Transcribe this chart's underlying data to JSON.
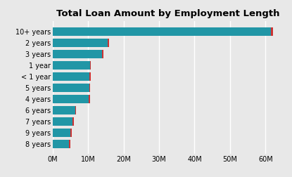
{
  "title": "Total Loan Amount by Employment Length",
  "categories": [
    "10+ years",
    "2 years",
    "3 years",
    "1 year",
    "< 1 year",
    "5 years",
    "4 years",
    "6 years",
    "7 years",
    "9 years",
    "8 years"
  ],
  "values": [
    61500000,
    15500000,
    14000000,
    10500000,
    10400000,
    10300000,
    10200000,
    6400000,
    5700000,
    5100000,
    4700000
  ],
  "red_values": [
    62200000,
    15900000,
    14400000,
    10700000,
    10700000,
    10600000,
    10500000,
    6700000,
    6000000,
    5400000,
    5000000
  ],
  "bar_color": "#2196A6",
  "red_color": "#cc3333",
  "background_color": "#e8e8e8",
  "plot_bg_color": "#e8e8e8",
  "grid_color": "#ffffff",
  "title_fontsize": 9.5,
  "tick_fontsize": 7,
  "xlim": [
    0,
    65000000
  ],
  "xticks": [
    0,
    10000000,
    20000000,
    30000000,
    40000000,
    50000000,
    60000000
  ],
  "xtick_labels": [
    "0M",
    "10M",
    "20M",
    "30M",
    "40M",
    "50M",
    "60M"
  ]
}
